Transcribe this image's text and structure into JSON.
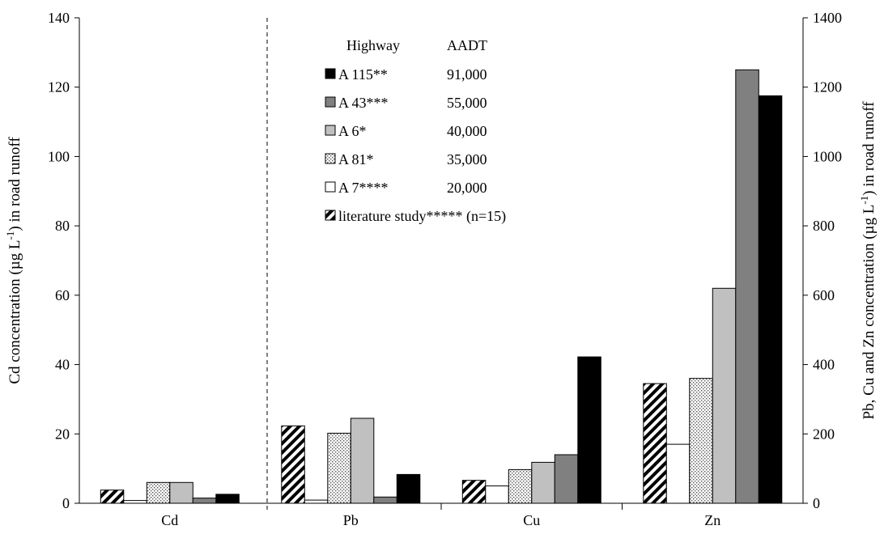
{
  "chart_data": {
    "type": "bar",
    "categories": [
      "Cd",
      "Pb",
      "Cu",
      "Zn"
    ],
    "left_axis": {
      "label_parts": [
        "Cd concentration (µg L",
        "-1",
        ") in road runoff"
      ],
      "ylim": [
        0,
        140
      ],
      "ticks": [
        "0",
        "20",
        "40",
        "60",
        "80",
        "100",
        "120",
        "140"
      ],
      "applies_to": [
        "Cd"
      ]
    },
    "right_axis": {
      "label_parts": [
        "Pb, Cu and Zn concentration (µg  L",
        "-1",
        ") in road runoff"
      ],
      "ylim": [
        0,
        1400
      ],
      "ticks": [
        "0",
        "200",
        "400",
        "600",
        "800",
        "1000",
        "1200",
        "1400"
      ],
      "applies_to": [
        "Pb",
        "Cu",
        "Zn"
      ]
    },
    "series": [
      {
        "name": "literature study***** (n=15)",
        "pattern": "diagonal",
        "values": [
          3.8,
          223,
          66,
          345
        ]
      },
      {
        "name": "A 7****",
        "pattern": "white",
        "values": [
          0.8,
          9,
          50,
          170
        ]
      },
      {
        "name": "A 81*",
        "pattern": "dotted",
        "values": [
          6,
          202,
          97,
          360
        ]
      },
      {
        "name": "A 6*",
        "pattern": "light-gray",
        "values": [
          6,
          245,
          118,
          620
        ]
      },
      {
        "name": "A 43***",
        "pattern": "dark-gray",
        "values": [
          1.5,
          18,
          140,
          1250
        ]
      },
      {
        "name": "A 115**",
        "pattern": "black",
        "values": [
          2.6,
          83,
          422,
          1175
        ]
      }
    ],
    "legend": {
      "header": {
        "col1": "Highway",
        "col2": "AADT"
      },
      "entries": [
        {
          "label": "A 115**",
          "aadt": "91,000",
          "pattern": "black"
        },
        {
          "label": "A 43***",
          "aadt": "55,000",
          "pattern": "dark-gray"
        },
        {
          "label": "A 6*",
          "aadt": "40,000",
          "pattern": "light-gray"
        },
        {
          "label": "A 81*",
          "aadt": "35,000",
          "pattern": "dotted"
        },
        {
          "label": "A 7****",
          "aadt": "20,000",
          "pattern": "white"
        },
        {
          "label": "literature study***** (n=15)",
          "aadt": "",
          "pattern": "diagonal"
        }
      ],
      "placement": "top-center"
    },
    "colors": {
      "black": "#000000",
      "dark-gray": "#808080",
      "light-gray": "#c0c0c0",
      "white": "#ffffff",
      "grid": "none"
    }
  }
}
